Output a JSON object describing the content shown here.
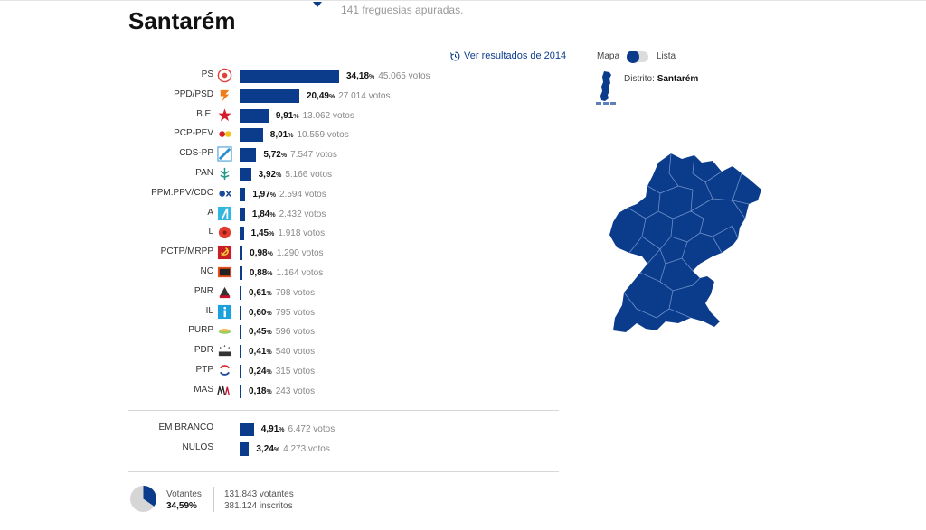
{
  "header": {
    "title": "Santarém",
    "subtitle": "141 freguesias apuradas."
  },
  "history_link": "Ver resultados de 2014",
  "view_toggle": {
    "map_label": "Mapa",
    "list_label": "Lista",
    "active": "map"
  },
  "district": {
    "label": "Distrito:",
    "name": "Santarém"
  },
  "colors": {
    "bar": "#0b3c8c",
    "map": "#0b3c8c"
  },
  "parties": [
    {
      "name": "PS",
      "logo": "ps-logo",
      "pct": "34,18",
      "pct_value": 34.18,
      "votes": "45.065 votos"
    },
    {
      "name": "PPD/PSD",
      "logo": "psd-logo",
      "pct": "20,49",
      "pct_value": 20.49,
      "votes": "27.014 votos"
    },
    {
      "name": "B.E.",
      "logo": "be-logo",
      "pct": "9,91",
      "pct_value": 9.91,
      "votes": "13.062 votos"
    },
    {
      "name": "PCP-PEV",
      "logo": "cdu-logo",
      "pct": "8,01",
      "pct_value": 8.01,
      "votes": "10.559 votos"
    },
    {
      "name": "CDS-PP",
      "logo": "cds-logo",
      "pct": "5,72",
      "pct_value": 5.72,
      "votes": "7.547 votos"
    },
    {
      "name": "PAN",
      "logo": "pan-logo",
      "pct": "3,92",
      "pct_value": 3.92,
      "votes": "5.166 votos"
    },
    {
      "name": "PPM.PPV/CDC",
      "logo": "ppm-logo",
      "pct": "1,97",
      "pct_value": 1.97,
      "votes": "2.594 votos"
    },
    {
      "name": "A",
      "logo": "aliança-logo",
      "pct": "1,84",
      "pct_value": 1.84,
      "votes": "2.432 votos"
    },
    {
      "name": "L",
      "logo": "livre-logo",
      "pct": "1,45",
      "pct_value": 1.45,
      "votes": "1.918 votos"
    },
    {
      "name": "PCTP/MRPP",
      "logo": "pctp-logo",
      "pct": "0,98",
      "pct_value": 0.98,
      "votes": "1.290 votos"
    },
    {
      "name": "NC",
      "logo": "nc-logo",
      "pct": "0,88",
      "pct_value": 0.88,
      "votes": "1.164 votos"
    },
    {
      "name": "PNR",
      "logo": "pnr-logo",
      "pct": "0,61",
      "pct_value": 0.61,
      "votes": "798 votos"
    },
    {
      "name": "IL",
      "logo": "il-logo",
      "pct": "0,60",
      "pct_value": 0.6,
      "votes": "795 votos"
    },
    {
      "name": "PURP",
      "logo": "purp-logo",
      "pct": "0,45",
      "pct_value": 0.45,
      "votes": "596 votos"
    },
    {
      "name": "PDR",
      "logo": "pdr-logo",
      "pct": "0,41",
      "pct_value": 0.41,
      "votes": "540 votos"
    },
    {
      "name": "PTP",
      "logo": "ptp-logo",
      "pct": "0,24",
      "pct_value": 0.24,
      "votes": "315 votos"
    },
    {
      "name": "MAS",
      "logo": "mas-logo",
      "pct": "0,18",
      "pct_value": 0.18,
      "votes": "243 votos"
    }
  ],
  "other": [
    {
      "name": "EM BRANCO",
      "pct": "4,91",
      "pct_value": 4.91,
      "votes": "6.472 votos"
    },
    {
      "name": "NULOS",
      "pct": "3,24",
      "pct_value": 3.24,
      "votes": "4.273 votos"
    }
  ],
  "turnout": {
    "label": "Votantes",
    "pct": "34,59%",
    "pct_value": 34.59,
    "voters": "131.843 votantes",
    "registered": "381.124 inscritos"
  },
  "chart_data": {
    "type": "bar",
    "orientation": "horizontal",
    "categories": [
      "PS",
      "PPD/PSD",
      "B.E.",
      "PCP-PEV",
      "CDS-PP",
      "PAN",
      "PPM.PPV/CDC",
      "A",
      "L",
      "PCTP/MRPP",
      "NC",
      "PNR",
      "IL",
      "PURP",
      "PDR",
      "PTP",
      "MAS",
      "EM BRANCO",
      "NULOS"
    ],
    "values": [
      34.18,
      20.49,
      9.91,
      8.01,
      5.72,
      3.92,
      1.97,
      1.84,
      1.45,
      0.98,
      0.88,
      0.61,
      0.6,
      0.45,
      0.41,
      0.24,
      0.18,
      4.91,
      3.24
    ],
    "votes": [
      45065,
      27014,
      13062,
      10559,
      7547,
      5166,
      2594,
      2432,
      1918,
      1290,
      1164,
      798,
      795,
      596,
      540,
      315,
      243,
      6472,
      4273
    ],
    "title": "Santarém",
    "xlabel": "",
    "ylabel": "",
    "unit": "%",
    "grid": false
  }
}
